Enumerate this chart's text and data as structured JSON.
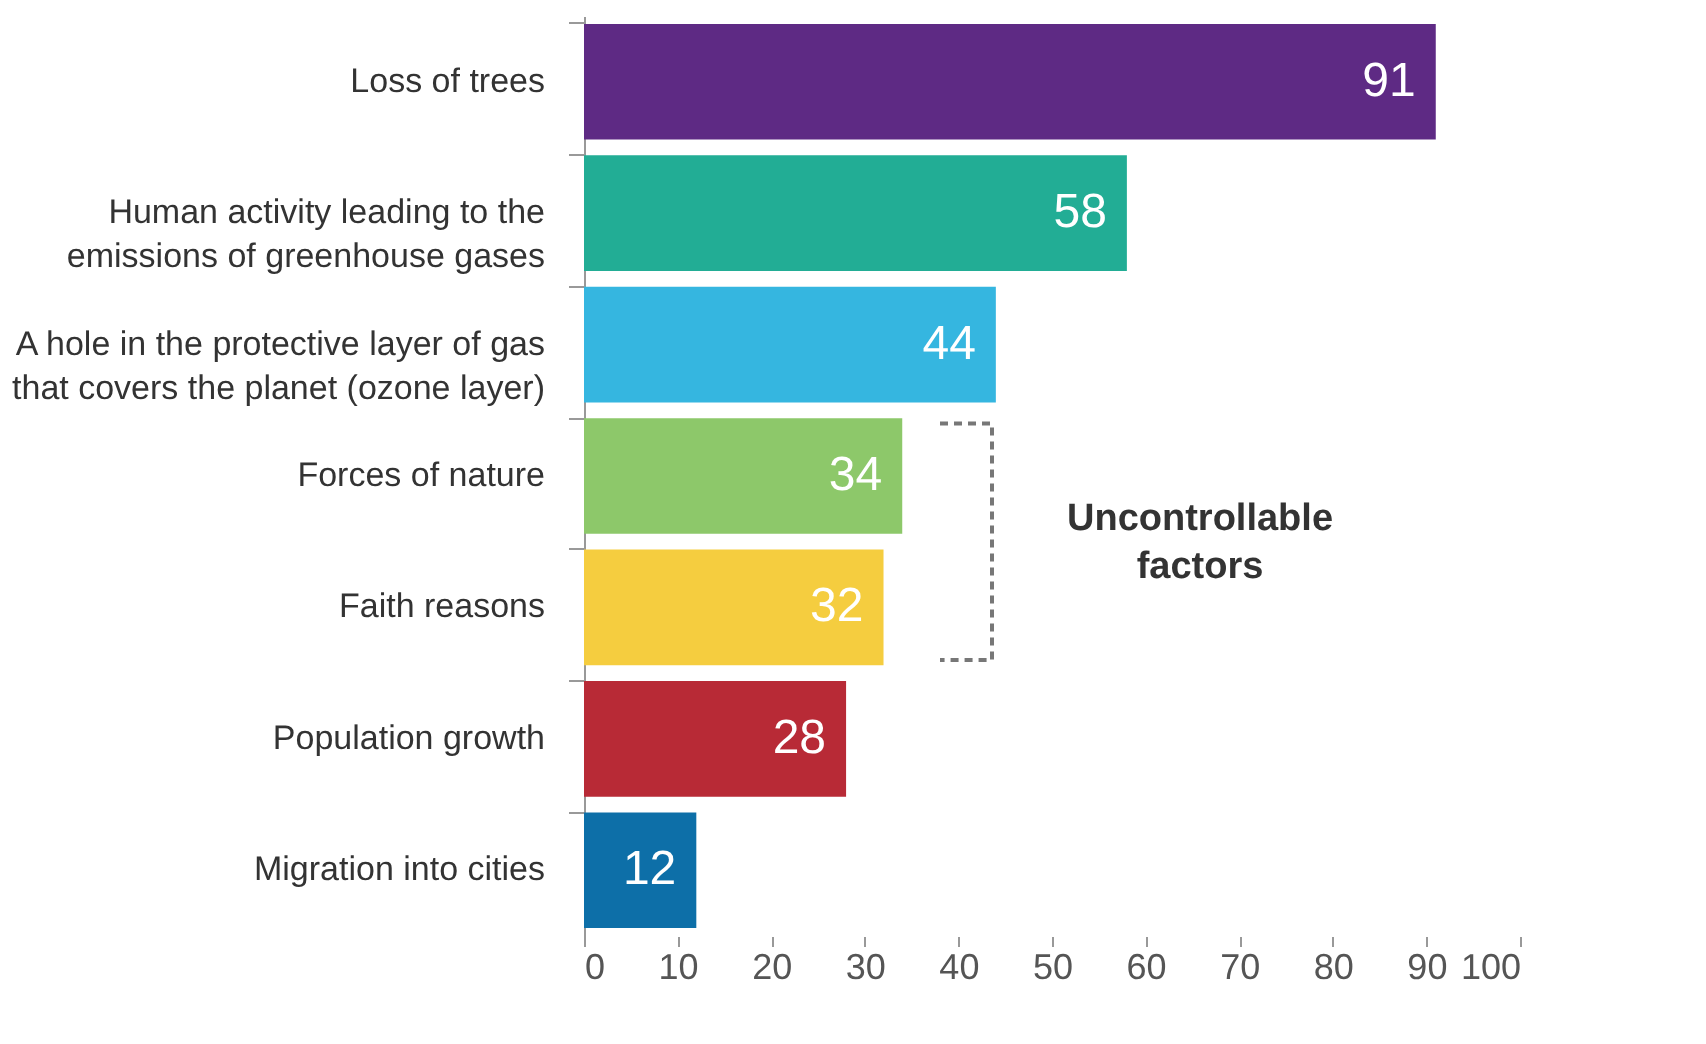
{
  "chart_data": {
    "type": "bar",
    "orientation": "horizontal",
    "categories": [
      "Loss of trees",
      "Human activity leading to the emissions of greenhouse gases",
      "A hole in the protective layer of gas that covers the planet (ozone layer)",
      "Forces of nature",
      "Faith reasons",
      "Population growth",
      "Migration into cities"
    ],
    "values": [
      91,
      58,
      44,
      34,
      32,
      28,
      12
    ],
    "colors": [
      "#5e2a84",
      "#22ad95",
      "#35b6e0",
      "#8dc86a",
      "#f5cd3f",
      "#b82a36",
      "#0d6fa8"
    ],
    "xlim": [
      0,
      100
    ],
    "xticks": [
      0,
      10,
      20,
      30,
      40,
      50,
      60,
      70,
      80,
      90,
      100
    ],
    "data_labels": true,
    "grid": false,
    "annotations": [
      "Uncontrollable factors"
    ]
  }
}
